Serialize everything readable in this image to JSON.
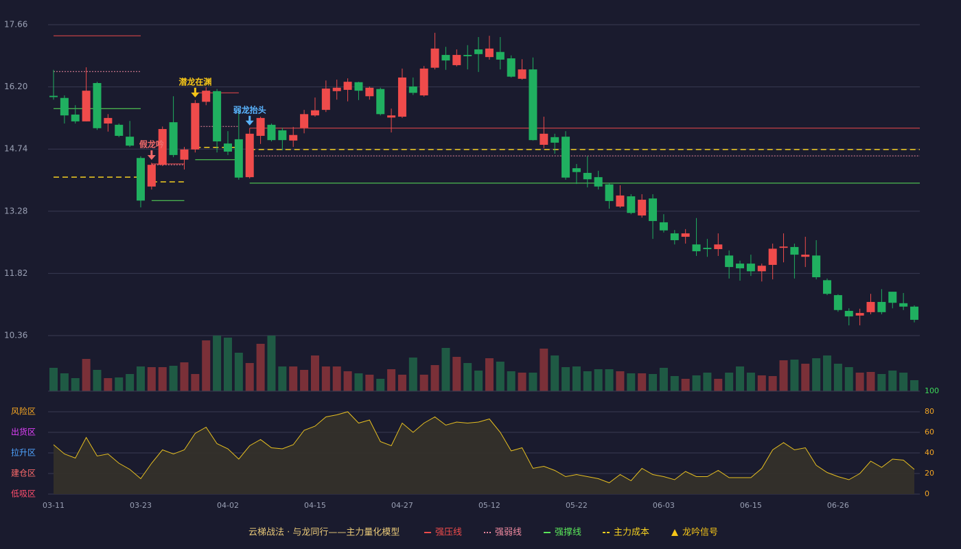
{
  "chart_data": {
    "type": "candlestick",
    "categories": [
      "03-11",
      null,
      null,
      null,
      null,
      null,
      null,
      null,
      "03-23",
      null,
      null,
      null,
      null,
      null,
      null,
      null,
      "04-02",
      null,
      null,
      null,
      null,
      null,
      null,
      null,
      "04-15",
      null,
      null,
      null,
      null,
      null,
      null,
      null,
      "04-27",
      null,
      null,
      null,
      null,
      null,
      null,
      null,
      "05-12",
      null,
      null,
      null,
      null,
      null,
      null,
      null,
      "05-22",
      null,
      null,
      null,
      null,
      null,
      null,
      null,
      "06-03",
      null,
      null,
      null,
      null,
      null,
      null,
      null,
      "06-15",
      null,
      null,
      null,
      null,
      null,
      null,
      null,
      "06-26",
      null,
      null,
      null,
      null,
      null,
      null,
      null
    ],
    "open": [
      15.99,
      15.94,
      15.55,
      15.39,
      16.29,
      15.34,
      15.31,
      15.03,
      14.53,
      13.86,
      14.37,
      15.37,
      14.49,
      14.73,
      15.85,
      16.1,
      14.87,
      14.97,
      14.08,
      15.05,
      15.31,
      15.18,
      14.94,
      15.24,
      15.53,
      15.66,
      16.1,
      16.13,
      16.31,
      15.98,
      16.15,
      15.48,
      15.5,
      16.21,
      16.0,
      16.65,
      16.95,
      16.71,
      16.95,
      17.08,
      16.9,
      17.02,
      16.87,
      16.39,
      16.61,
      14.84,
      15.02,
      15.03,
      14.29,
      14.18,
      14.08,
      13.91,
      13.39,
      13.63,
      13.18,
      13.58,
      13.02,
      12.76,
      12.68,
      12.5,
      12.42,
      12.39,
      12.24,
      12.05,
      12.05,
      11.87,
      12.02,
      12.42,
      12.44,
      12.21,
      12.24,
      11.66,
      11.31,
      10.94,
      10.83,
      10.91,
      11.15,
      11.39,
      11.12,
      11.04
    ],
    "high": [
      16.6,
      16.0,
      15.77,
      16.66,
      16.32,
      15.56,
      15.34,
      15.4,
      14.57,
      14.42,
      15.27,
      15.98,
      14.79,
      15.89,
      16.19,
      16.15,
      15.16,
      15.66,
      15.23,
      15.5,
      15.34,
      15.24,
      15.26,
      15.66,
      15.95,
      16.35,
      16.37,
      16.4,
      16.32,
      16.21,
      16.18,
      15.69,
      16.63,
      16.42,
      16.69,
      17.47,
      17.14,
      17.08,
      17.18,
      17.37,
      17.4,
      17.37,
      16.94,
      16.85,
      16.89,
      15.5,
      15.1,
      15.16,
      14.39,
      14.57,
      14.23,
      13.95,
      13.89,
      13.68,
      13.68,
      13.68,
      13.21,
      12.84,
      12.86,
      13.12,
      12.63,
      12.76,
      12.36,
      12.12,
      12.26,
      12.05,
      12.52,
      12.76,
      12.52,
      12.68,
      12.6,
      11.7,
      11.33,
      11.0,
      10.99,
      11.34,
      11.45,
      11.39,
      11.36,
      11.07
    ],
    "low": [
      15.9,
      15.34,
      15.34,
      15.39,
      15.19,
      15.15,
      15.02,
      14.79,
      13.37,
      13.79,
      14.34,
      14.55,
      14.26,
      14.66,
      15.77,
      14.66,
      14.6,
      14.02,
      14.05,
      14.86,
      14.92,
      14.71,
      14.79,
      15.11,
      15.5,
      15.61,
      15.9,
      15.86,
      15.89,
      15.9,
      15.53,
      15.13,
      15.47,
      16.01,
      15.97,
      16.61,
      16.6,
      16.68,
      16.61,
      16.55,
      16.84,
      16.61,
      16.42,
      16.37,
      14.94,
      14.76,
      14.63,
      14.02,
      13.92,
      13.84,
      13.79,
      13.34,
      13.36,
      13.21,
      13.13,
      12.63,
      12.78,
      12.5,
      12.52,
      12.23,
      12.21,
      12.23,
      11.7,
      11.65,
      11.76,
      11.63,
      11.68,
      12.08,
      11.7,
      11.97,
      11.68,
      11.31,
      10.92,
      10.6,
      10.6,
      10.86,
      10.86,
      11.0,
      10.96,
      10.67
    ],
    "close": [
      15.96,
      15.53,
      15.39,
      16.11,
      15.23,
      15.47,
      15.05,
      14.82,
      13.53,
      14.37,
      15.21,
      14.6,
      14.73,
      15.82,
      16.11,
      14.92,
      14.68,
      14.07,
      15.1,
      15.47,
      14.95,
      14.95,
      15.07,
      15.56,
      15.65,
      16.16,
      16.18,
      16.32,
      16.11,
      16.18,
      15.56,
      15.53,
      16.42,
      16.06,
      16.63,
      17.1,
      16.82,
      16.95,
      16.92,
      16.97,
      17.1,
      16.84,
      16.44,
      16.61,
      14.95,
      15.1,
      14.89,
      14.07,
      14.2,
      14.03,
      13.86,
      13.52,
      13.65,
      13.24,
      13.55,
      13.05,
      12.83,
      12.6,
      12.76,
      12.34,
      12.39,
      12.5,
      11.97,
      11.94,
      11.87,
      12.0,
      12.4,
      12.45,
      12.26,
      12.26,
      11.73,
      11.34,
      10.96,
      10.81,
      10.89,
      11.15,
      10.91,
      11.13,
      11.04,
      10.73
    ],
    "volume": [
      34,
      26,
      19,
      47,
      31,
      19,
      20,
      25,
      36,
      35,
      35,
      37,
      42,
      25,
      74,
      81,
      78,
      56,
      41,
      69,
      81,
      36,
      36,
      31,
      52,
      36,
      36,
      29,
      26,
      24,
      18,
      32,
      24,
      49,
      24,
      38,
      63,
      50,
      41,
      30,
      48,
      43,
      29,
      27,
      27,
      62,
      52,
      35,
      36,
      29,
      32,
      32,
      29,
      26,
      26,
      25,
      34,
      22,
      18,
      23,
      27,
      18,
      27,
      36,
      27,
      23,
      22,
      45,
      46,
      40,
      48,
      52,
      40,
      35,
      27,
      28,
      25,
      30,
      27,
      16
    ],
    "up_color": "#ef4b4b",
    "down_color": "#20b060",
    "ylim": [
      10.36,
      17.66
    ],
    "yticks": [
      {
        "value": 10.36,
        "label": "10.36"
      },
      11.82,
      13.28,
      14.74,
      {
        "value": 16.2,
        "label": "16.20"
      },
      17.66
    ],
    "grid": true,
    "levels": [
      {
        "from": 0,
        "to": 8,
        "pressure": 17.4,
        "weak": 16.56,
        "support": 15.69,
        "cost": 14.08
      },
      {
        "from": 9,
        "to": 12,
        "pressure": 14.39,
        "weak": 14.37,
        "support": 13.53,
        "cost": 13.97
      },
      {
        "from": 13,
        "to": 17,
        "pressure": 16.06,
        "weak": 15.27,
        "support": 14.49,
        "cost": 14.78
      },
      {
        "from": 18,
        "to": 79,
        "pressure": 15.23,
        "weak": 14.58,
        "support": 13.94,
        "cost": 14.73
      }
    ],
    "signals": [
      {
        "index": 9,
        "label": "假龙吟",
        "color": "#f06a6a"
      },
      {
        "index": 13,
        "label": "潜龙在渊",
        "color": "#f5c518"
      },
      {
        "index": 18,
        "label": "弱龙抬头",
        "color": "#5ab4ff"
      }
    ],
    "indicator": {
      "ylim": [
        0,
        100
      ],
      "yticks": [
        0,
        20,
        40,
        60,
        80,
        100
      ],
      "color": "#e8c020",
      "values": [
        48,
        39,
        35,
        55,
        37,
        39,
        30,
        24,
        15,
        30,
        43,
        39,
        43,
        59,
        65,
        49,
        44,
        34,
        47,
        53,
        45,
        44,
        48,
        62,
        66,
        75,
        77,
        80,
        69,
        72,
        51,
        47,
        69,
        60,
        69,
        75,
        67,
        70,
        69,
        70,
        73,
        60,
        42,
        45,
        25,
        27,
        23,
        17,
        19,
        17,
        15,
        11,
        19,
        13,
        25,
        19,
        17,
        14,
        22,
        17,
        17,
        23,
        16,
        16,
        16,
        25,
        43,
        50,
        43,
        45,
        28,
        21,
        17,
        14,
        20,
        32,
        26,
        34,
        33,
        24
      ],
      "zones": [
        {
          "label": "风险区",
          "value": 80,
          "color": "#f5a623"
        },
        {
          "label": "出货区",
          "value": 60,
          "color": "#e040fb"
        },
        {
          "label": "拉升区",
          "value": 40,
          "color": "#4fa3ff"
        },
        {
          "label": "建仓区",
          "value": 20,
          "color": "#ff6b6b"
        },
        {
          "label": "低吸区",
          "value": 0,
          "color": "#ff4d6d"
        }
      ]
    },
    "legend": [
      {
        "label": "云梯战法 · 与龙同行——主力量化模型",
        "color": "#e8c878",
        "style": "text"
      },
      {
        "label": "强压线",
        "color": "#ef4b4b",
        "style": "solid"
      },
      {
        "label": "强弱线",
        "color": "#f08aa0",
        "style": "dotted"
      },
      {
        "label": "强撑线",
        "color": "#5ae65a",
        "style": "solid"
      },
      {
        "label": "主力成本",
        "color": "#f5d020",
        "style": "dashed"
      },
      {
        "label": "龙吟信号",
        "color": "#f5c518",
        "style": "triangle"
      }
    ]
  }
}
